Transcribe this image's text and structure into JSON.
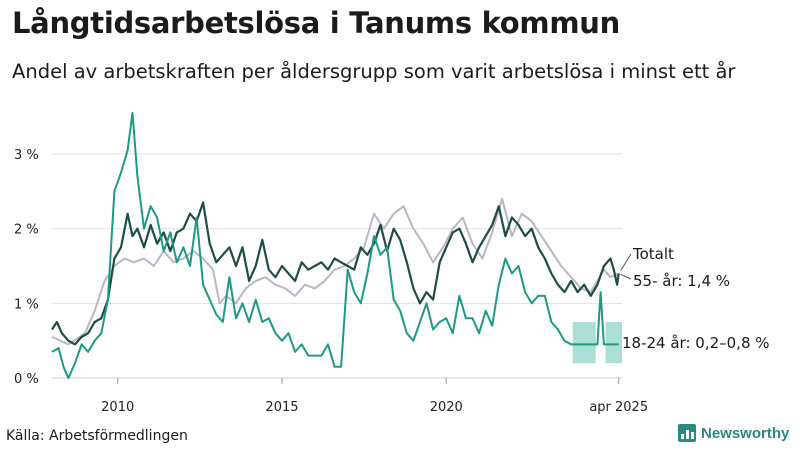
{
  "title": "Långtidsarbetslösa i Tanums kommun",
  "subtitle": "Andel av arbetskraften per åldersgrupp som varit arbetslösa i minst ett år",
  "source": "Källa: Arbetsförmedlingen",
  "brand": "Newsworthy",
  "colors": {
    "totalt": "#1e4d45",
    "age55": "#bab6c4",
    "age1824": "#1d9a86",
    "band": "#8fd3c7",
    "grid": "#e2e2e2",
    "brand": "#2a8a7f"
  },
  "chart_data": {
    "type": "line",
    "x_range": [
      2008.0,
      2025.35
    ],
    "ylim": [
      0,
      3.6
    ],
    "y_ticks": [
      {
        "value": 0,
        "label": "0 %"
      },
      {
        "value": 1,
        "label": "1 %"
      },
      {
        "value": 2,
        "label": "2 %"
      },
      {
        "value": 3,
        "label": "3 %"
      }
    ],
    "x_ticks": [
      {
        "value": 2010,
        "label": "2010"
      },
      {
        "value": 2015,
        "label": "2015"
      },
      {
        "value": 2020,
        "label": "2020"
      },
      {
        "value": 2025.25,
        "label": "apr 2025"
      }
    ],
    "grid": true,
    "series": [
      {
        "key": "age55",
        "label": "55- år: 1,4 %",
        "points": [
          [
            2008.0,
            0.55
          ],
          [
            2008.5,
            0.45
          ],
          [
            2009.0,
            0.6
          ],
          [
            2009.3,
            0.9
          ],
          [
            2009.6,
            1.3
          ],
          [
            2009.9,
            1.5
          ],
          [
            2010.2,
            1.6
          ],
          [
            2010.5,
            1.55
          ],
          [
            2010.8,
            1.6
          ],
          [
            2011.1,
            1.5
          ],
          [
            2011.4,
            1.7
          ],
          [
            2011.7,
            1.55
          ],
          [
            2012.0,
            1.6
          ],
          [
            2012.3,
            1.7
          ],
          [
            2012.6,
            1.6
          ],
          [
            2012.9,
            1.45
          ],
          [
            2013.1,
            1.0
          ],
          [
            2013.3,
            1.1
          ],
          [
            2013.6,
            1.0
          ],
          [
            2013.9,
            1.2
          ],
          [
            2014.2,
            1.3
          ],
          [
            2014.5,
            1.35
          ],
          [
            2014.8,
            1.25
          ],
          [
            2015.1,
            1.2
          ],
          [
            2015.4,
            1.1
          ],
          [
            2015.7,
            1.25
          ],
          [
            2016.0,
            1.2
          ],
          [
            2016.3,
            1.3
          ],
          [
            2016.6,
            1.45
          ],
          [
            2016.9,
            1.5
          ],
          [
            2017.2,
            1.6
          ],
          [
            2017.5,
            1.75
          ],
          [
            2017.8,
            2.2
          ],
          [
            2018.1,
            2.0
          ],
          [
            2018.4,
            2.2
          ],
          [
            2018.7,
            2.3
          ],
          [
            2019.0,
            2.0
          ],
          [
            2019.3,
            1.8
          ],
          [
            2019.6,
            1.55
          ],
          [
            2019.9,
            1.75
          ],
          [
            2020.2,
            2.0
          ],
          [
            2020.5,
            2.15
          ],
          [
            2020.8,
            1.8
          ],
          [
            2021.1,
            1.6
          ],
          [
            2021.4,
            1.95
          ],
          [
            2021.7,
            2.4
          ],
          [
            2022.0,
            1.9
          ],
          [
            2022.3,
            2.2
          ],
          [
            2022.6,
            2.1
          ],
          [
            2022.9,
            1.9
          ],
          [
            2023.2,
            1.7
          ],
          [
            2023.5,
            1.5
          ],
          [
            2023.8,
            1.35
          ],
          [
            2024.1,
            1.2
          ],
          [
            2024.4,
            1.15
          ],
          [
            2024.6,
            1.3
          ],
          [
            2024.8,
            1.45
          ],
          [
            2025.0,
            1.35
          ],
          [
            2025.25,
            1.4
          ]
        ]
      },
      {
        "key": "totalt",
        "label": "Totalt",
        "points": [
          [
            2008.0,
            0.65
          ],
          [
            2008.15,
            0.75
          ],
          [
            2008.3,
            0.6
          ],
          [
            2008.5,
            0.5
          ],
          [
            2008.7,
            0.45
          ],
          [
            2008.9,
            0.55
          ],
          [
            2009.1,
            0.6
          ],
          [
            2009.3,
            0.75
          ],
          [
            2009.5,
            0.8
          ],
          [
            2009.7,
            1.05
          ],
          [
            2009.9,
            1.6
          ],
          [
            2010.1,
            1.75
          ],
          [
            2010.3,
            2.2
          ],
          [
            2010.45,
            1.9
          ],
          [
            2010.6,
            2.0
          ],
          [
            2010.8,
            1.75
          ],
          [
            2011.0,
            2.05
          ],
          [
            2011.2,
            1.8
          ],
          [
            2011.4,
            1.95
          ],
          [
            2011.6,
            1.7
          ],
          [
            2011.8,
            1.95
          ],
          [
            2012.0,
            2.0
          ],
          [
            2012.2,
            2.2
          ],
          [
            2012.4,
            2.1
          ],
          [
            2012.6,
            2.35
          ],
          [
            2012.8,
            1.8
          ],
          [
            2013.0,
            1.55
          ],
          [
            2013.2,
            1.65
          ],
          [
            2013.4,
            1.75
          ],
          [
            2013.6,
            1.5
          ],
          [
            2013.8,
            1.75
          ],
          [
            2014.0,
            1.3
          ],
          [
            2014.2,
            1.5
          ],
          [
            2014.4,
            1.85
          ],
          [
            2014.6,
            1.45
          ],
          [
            2014.8,
            1.35
          ],
          [
            2015.0,
            1.5
          ],
          [
            2015.2,
            1.4
          ],
          [
            2015.4,
            1.3
          ],
          [
            2015.6,
            1.55
          ],
          [
            2015.8,
            1.45
          ],
          [
            2016.0,
            1.5
          ],
          [
            2016.2,
            1.55
          ],
          [
            2016.4,
            1.45
          ],
          [
            2016.6,
            1.6
          ],
          [
            2016.8,
            1.55
          ],
          [
            2017.0,
            1.5
          ],
          [
            2017.2,
            1.45
          ],
          [
            2017.4,
            1.75
          ],
          [
            2017.6,
            1.65
          ],
          [
            2017.8,
            1.8
          ],
          [
            2018.0,
            2.05
          ],
          [
            2018.2,
            1.7
          ],
          [
            2018.4,
            2.0
          ],
          [
            2018.6,
            1.85
          ],
          [
            2018.8,
            1.55
          ],
          [
            2019.0,
            1.2
          ],
          [
            2019.2,
            1.0
          ],
          [
            2019.4,
            1.15
          ],
          [
            2019.6,
            1.05
          ],
          [
            2019.8,
            1.55
          ],
          [
            2020.0,
            1.75
          ],
          [
            2020.2,
            1.95
          ],
          [
            2020.4,
            2.0
          ],
          [
            2020.6,
            1.8
          ],
          [
            2020.8,
            1.55
          ],
          [
            2021.0,
            1.75
          ],
          [
            2021.2,
            1.9
          ],
          [
            2021.4,
            2.05
          ],
          [
            2021.6,
            2.3
          ],
          [
            2021.8,
            1.9
          ],
          [
            2022.0,
            2.15
          ],
          [
            2022.2,
            2.05
          ],
          [
            2022.4,
            1.9
          ],
          [
            2022.6,
            2.0
          ],
          [
            2022.8,
            1.75
          ],
          [
            2023.0,
            1.6
          ],
          [
            2023.2,
            1.4
          ],
          [
            2023.4,
            1.25
          ],
          [
            2023.6,
            1.15
          ],
          [
            2023.8,
            1.3
          ],
          [
            2024.0,
            1.15
          ],
          [
            2024.2,
            1.25
          ],
          [
            2024.4,
            1.1
          ],
          [
            2024.6,
            1.25
          ],
          [
            2024.8,
            1.5
          ],
          [
            2025.0,
            1.6
          ],
          [
            2025.1,
            1.45
          ],
          [
            2025.2,
            1.25
          ],
          [
            2025.25,
            1.4
          ]
        ]
      },
      {
        "key": "age1824",
        "label": "18-24 år: 0,2–0,8 %",
        "points": [
          [
            2008.0,
            0.35
          ],
          [
            2008.2,
            0.4
          ],
          [
            2008.35,
            0.15
          ],
          [
            2008.5,
            0.0
          ],
          [
            2008.7,
            0.2
          ],
          [
            2008.9,
            0.45
          ],
          [
            2009.1,
            0.35
          ],
          [
            2009.3,
            0.5
          ],
          [
            2009.5,
            0.6
          ],
          [
            2009.7,
            1.05
          ],
          [
            2009.9,
            2.5
          ],
          [
            2010.1,
            2.75
          ],
          [
            2010.3,
            3.05
          ],
          [
            2010.45,
            3.55
          ],
          [
            2010.6,
            2.7
          ],
          [
            2010.8,
            2.0
          ],
          [
            2011.0,
            2.3
          ],
          [
            2011.2,
            2.15
          ],
          [
            2011.4,
            1.7
          ],
          [
            2011.6,
            1.95
          ],
          [
            2011.8,
            1.55
          ],
          [
            2012.0,
            1.75
          ],
          [
            2012.2,
            1.5
          ],
          [
            2012.4,
            2.15
          ],
          [
            2012.6,
            1.25
          ],
          [
            2012.8,
            1.05
          ],
          [
            2013.0,
            0.85
          ],
          [
            2013.2,
            0.75
          ],
          [
            2013.4,
            1.35
          ],
          [
            2013.6,
            0.8
          ],
          [
            2013.8,
            1.0
          ],
          [
            2014.0,
            0.75
          ],
          [
            2014.2,
            1.05
          ],
          [
            2014.4,
            0.75
          ],
          [
            2014.6,
            0.8
          ],
          [
            2014.8,
            0.6
          ],
          [
            2015.0,
            0.5
          ],
          [
            2015.2,
            0.6
          ],
          [
            2015.4,
            0.35
          ],
          [
            2015.6,
            0.45
          ],
          [
            2015.8,
            0.3
          ],
          [
            2016.0,
            0.3
          ],
          [
            2016.2,
            0.3
          ],
          [
            2016.4,
            0.45
          ],
          [
            2016.6,
            0.15
          ],
          [
            2016.8,
            0.15
          ],
          [
            2017.0,
            1.45
          ],
          [
            2017.2,
            1.15
          ],
          [
            2017.4,
            1.0
          ],
          [
            2017.6,
            1.4
          ],
          [
            2017.8,
            1.9
          ],
          [
            2018.0,
            1.65
          ],
          [
            2018.2,
            1.75
          ],
          [
            2018.4,
            1.05
          ],
          [
            2018.6,
            0.9
          ],
          [
            2018.8,
            0.6
          ],
          [
            2019.0,
            0.5
          ],
          [
            2019.2,
            0.75
          ],
          [
            2019.4,
            1.0
          ],
          [
            2019.6,
            0.65
          ],
          [
            2019.8,
            0.75
          ],
          [
            2020.0,
            0.8
          ],
          [
            2020.2,
            0.6
          ],
          [
            2020.4,
            1.1
          ],
          [
            2020.6,
            0.8
          ],
          [
            2020.8,
            0.8
          ],
          [
            2021.0,
            0.6
          ],
          [
            2021.2,
            0.9
          ],
          [
            2021.4,
            0.7
          ],
          [
            2021.6,
            1.25
          ],
          [
            2021.8,
            1.6
          ],
          [
            2022.0,
            1.4
          ],
          [
            2022.2,
            1.5
          ],
          [
            2022.4,
            1.15
          ],
          [
            2022.6,
            1.0
          ],
          [
            2022.8,
            1.1
          ],
          [
            2023.0,
            1.1
          ],
          [
            2023.2,
            0.75
          ],
          [
            2023.4,
            0.65
          ],
          [
            2023.6,
            0.5
          ],
          [
            2023.8,
            0.45
          ],
          [
            2024.0,
            0.45
          ],
          [
            2024.2,
            0.45
          ],
          [
            2024.4,
            0.45
          ],
          [
            2024.6,
            0.45
          ],
          [
            2024.7,
            1.15
          ],
          [
            2024.8,
            0.45
          ],
          [
            2025.0,
            0.45
          ],
          [
            2025.25,
            0.45
          ]
        ]
      }
    ],
    "band": {
      "key": "age1824",
      "segments": [
        {
          "x_from": 2023.85,
          "x_to": 2024.55,
          "low": 0.2,
          "high": 0.75
        },
        {
          "x_from": 2024.85,
          "x_to": 2025.35,
          "low": 0.2,
          "high": 0.75
        }
      ]
    }
  }
}
